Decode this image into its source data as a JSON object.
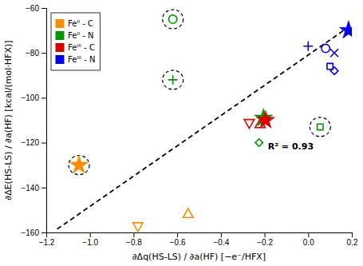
{
  "chart_data": {
    "type": "scatter",
    "x_label": "∂Δq(HS-LS) / ∂a(HF) [−e⁻/HFX]",
    "y_label": "∂ΔE(HS-LS) / ∂a(HF) [kcal/(mol·HFX)]",
    "xlim": [
      -1.2,
      0.2
    ],
    "ylim": [
      -160,
      -60
    ],
    "xticks": [
      {
        "value": -1.2,
        "label": "−1.2"
      },
      {
        "value": -1.0,
        "label": "−1.0"
      },
      {
        "value": -0.8,
        "label": "−0.8"
      },
      {
        "value": -0.6,
        "label": "−0.6"
      },
      {
        "value": -0.4,
        "label": "−0.4"
      },
      {
        "value": -0.2,
        "label": "−0.2"
      },
      {
        "value": 0.0,
        "label": "0.0"
      },
      {
        "value": 0.2,
        "label": "0.2"
      }
    ],
    "yticks": [
      {
        "value": -160,
        "label": "−160"
      },
      {
        "value": -140,
        "label": "−140"
      },
      {
        "value": -120,
        "label": "−120"
      },
      {
        "value": -100,
        "label": "−100"
      },
      {
        "value": -80,
        "label": "−80"
      },
      {
        "value": -60,
        "label": "−60"
      }
    ],
    "grid": false,
    "legend": "upper left",
    "annotations": [
      {
        "text": "R² = 0.93",
        "x": -0.08,
        "y": -122
      }
    ],
    "series": [
      {
        "type": "line",
        "line_style": "dashed",
        "color": "#000000",
        "x": [
          -1.15,
          0.185
        ],
        "values": [
          -158.5,
          -68.5
        ]
      },
      {
        "name": "Feᴵᴵ - C",
        "type": "scatter",
        "color": "#FF8C00",
        "x": [
          -1.05,
          -0.78,
          -0.55
        ],
        "values": [
          -130,
          -157,
          -152
        ],
        "markers": [
          "star",
          "triangle-down",
          "triangle-up"
        ],
        "circled": [
          true,
          false,
          false
        ]
      },
      {
        "name": "Feᴵᴵ - N",
        "type": "scatter",
        "color": "#009900",
        "x": [
          -0.62,
          -0.62,
          -0.205,
          -0.225,
          0.055
        ],
        "values": [
          -65,
          -92,
          -109,
          -120,
          -113
        ],
        "markers": [
          "circle",
          "plus",
          "star",
          "diamond",
          "square"
        ],
        "circled": [
          true,
          true,
          false,
          false,
          true
        ]
      },
      {
        "name": "Feᴵᴵᴵ - C",
        "type": "scatter",
        "color": "#DD0000",
        "x": [
          -0.27,
          -0.22,
          -0.195
        ],
        "values": [
          -111,
          -112,
          -110
        ],
        "markers": [
          "triangle-down",
          "triangle-up",
          "star"
        ],
        "circled": [
          false,
          false,
          false
        ]
      },
      {
        "name": "Feᴵᴵᴵ - N",
        "type": "scatter",
        "color": "#0000EE",
        "x": [
          0.0,
          0.08,
          0.12,
          0.1,
          0.12,
          0.185
        ],
        "values": [
          -77,
          -78,
          -80,
          -86,
          -88,
          -70
        ],
        "markers": [
          "plus",
          "circle",
          "x",
          "square",
          "diamond",
          "star"
        ],
        "circled": [
          false,
          false,
          false,
          false,
          false,
          false
        ]
      }
    ]
  }
}
